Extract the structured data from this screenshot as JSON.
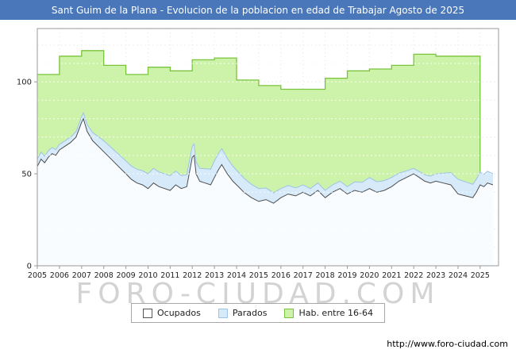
{
  "page": {
    "title": "Sant Guim de la Plana - Evolucion de la poblacion en edad de Trabajar Agosto de 2025",
    "watermark": "FORO-CIUDAD.COM",
    "footer_url": "http://www.foro-ciudad.com"
  },
  "colors": {
    "title_bar": "#4a77b9",
    "title_text": "#ffffff",
    "plot_border": "#999999",
    "grid_h": "#c8c8c8",
    "grid_v": "#e2e2e2",
    "grid_overlay": "rgba(255,255,255,0.85)",
    "green_fill": "#cdf3aa",
    "green_line": "#79c43c",
    "blue_fill": "#d6eafa",
    "blue_line": "#9dc3e6",
    "ocupados_fill": "rgba(255,255,255,0.85)",
    "ocupados_line": "#4d4d4d",
    "axis_text": "#222222",
    "watermark_text": "#d3d3d3"
  },
  "legend": {
    "items": [
      {
        "label": "Ocupados",
        "fill": "#ffffff",
        "border": "#555555"
      },
      {
        "label": "Parados",
        "fill": "#d6eafa",
        "border": "#9dc3e6"
      },
      {
        "label": "Hab. entre 16-64",
        "fill": "#cdf3aa",
        "border": "#79c43c"
      }
    ]
  },
  "chart_data": {
    "type": "area",
    "title": "Sant Guim de la Plana - Evolucion de la poblacion en edad de Trabajar Agosto de 2025",
    "xlabel": "",
    "ylabel": "",
    "x_range": [
      2005,
      2025.83
    ],
    "ylim": [
      0,
      129
    ],
    "yticks": [
      0,
      50,
      100
    ],
    "xticks": [
      2005,
      2006,
      2007,
      2008,
      2009,
      2010,
      2011,
      2012,
      2013,
      2014,
      2015,
      2016,
      2017,
      2018,
      2019,
      2020,
      2021,
      2022,
      2023,
      2024,
      2025
    ],
    "grid": {
      "horizontal_every": 10,
      "style": "dotted"
    },
    "legend_position": "bottom",
    "series": [
      {
        "name": "Hab. entre 16-64",
        "type": "step-area",
        "start_year": 2005,
        "end_x": 2025.0,
        "values": [
          104,
          114,
          117,
          109,
          104,
          108,
          106,
          112,
          113,
          101,
          98,
          96,
          96,
          102,
          106,
          107,
          109,
          115,
          114,
          114
        ]
      },
      {
        "name": "Parados",
        "type": "area",
        "stacked_on": "Ocupados",
        "points": [
          [
            2005,
            4
          ],
          [
            2006,
            3
          ],
          [
            2007,
            3
          ],
          [
            2008,
            6
          ],
          [
            2009,
            7
          ],
          [
            2010,
            8
          ],
          [
            2011,
            8
          ],
          [
            2012,
            6
          ],
          [
            2013,
            9
          ],
          [
            2014,
            8
          ],
          [
            2015,
            7
          ],
          [
            2016,
            5
          ],
          [
            2017,
            4
          ],
          [
            2018,
            4
          ],
          [
            2019,
            4
          ],
          [
            2020,
            6
          ],
          [
            2021,
            5
          ],
          [
            2022,
            3
          ],
          [
            2023,
            4
          ],
          [
            2024,
            8
          ],
          [
            2025,
            7
          ],
          [
            2025.58,
            6
          ]
        ]
      },
      {
        "name": "Ocupados",
        "type": "area",
        "points": [
          [
            2005.0,
            54
          ],
          [
            2005.17,
            58
          ],
          [
            2005.33,
            56
          ],
          [
            2005.5,
            59
          ],
          [
            2005.67,
            61
          ],
          [
            2005.83,
            60
          ],
          [
            2006.0,
            63
          ],
          [
            2006.25,
            65
          ],
          [
            2006.5,
            67
          ],
          [
            2006.75,
            70
          ],
          [
            2007.0,
            78
          ],
          [
            2007.08,
            80
          ],
          [
            2007.25,
            73
          ],
          [
            2007.5,
            68
          ],
          [
            2007.75,
            65
          ],
          [
            2008.0,
            62
          ],
          [
            2008.25,
            59
          ],
          [
            2008.5,
            56
          ],
          [
            2008.75,
            53
          ],
          [
            2009.0,
            50
          ],
          [
            2009.25,
            47
          ],
          [
            2009.5,
            45
          ],
          [
            2009.75,
            44
          ],
          [
            2010.0,
            42
          ],
          [
            2010.25,
            45
          ],
          [
            2010.5,
            43
          ],
          [
            2010.75,
            42
          ],
          [
            2011.0,
            41
          ],
          [
            2011.25,
            44
          ],
          [
            2011.5,
            42
          ],
          [
            2011.75,
            43
          ],
          [
            2012.0,
            59
          ],
          [
            2012.08,
            60
          ],
          [
            2012.17,
            50
          ],
          [
            2012.33,
            46
          ],
          [
            2012.58,
            45
          ],
          [
            2012.83,
            44
          ],
          [
            2013.0,
            48
          ],
          [
            2013.17,
            52
          ],
          [
            2013.33,
            55
          ],
          [
            2013.58,
            50
          ],
          [
            2013.83,
            46
          ],
          [
            2014.0,
            44
          ],
          [
            2014.33,
            40
          ],
          [
            2014.67,
            37
          ],
          [
            2015.0,
            35
          ],
          [
            2015.33,
            36
          ],
          [
            2015.67,
            34
          ],
          [
            2016.0,
            37
          ],
          [
            2016.33,
            39
          ],
          [
            2016.67,
            38
          ],
          [
            2017.0,
            40
          ],
          [
            2017.33,
            38
          ],
          [
            2017.67,
            41
          ],
          [
            2018.0,
            37
          ],
          [
            2018.33,
            40
          ],
          [
            2018.67,
            42
          ],
          [
            2019.0,
            39
          ],
          [
            2019.33,
            41
          ],
          [
            2019.67,
            40
          ],
          [
            2020.0,
            42
          ],
          [
            2020.33,
            40
          ],
          [
            2020.67,
            41
          ],
          [
            2021.0,
            43
          ],
          [
            2021.33,
            46
          ],
          [
            2021.67,
            48
          ],
          [
            2022.0,
            50
          ],
          [
            2022.25,
            48
          ],
          [
            2022.5,
            46
          ],
          [
            2022.75,
            45
          ],
          [
            2023.0,
            46
          ],
          [
            2023.33,
            45
          ],
          [
            2023.67,
            44
          ],
          [
            2024.0,
            39
          ],
          [
            2024.33,
            38
          ],
          [
            2024.67,
            37
          ],
          [
            2024.83,
            40
          ],
          [
            2025.0,
            44
          ],
          [
            2025.17,
            43
          ],
          [
            2025.33,
            45
          ],
          [
            2025.58,
            44
          ]
        ]
      }
    ]
  }
}
